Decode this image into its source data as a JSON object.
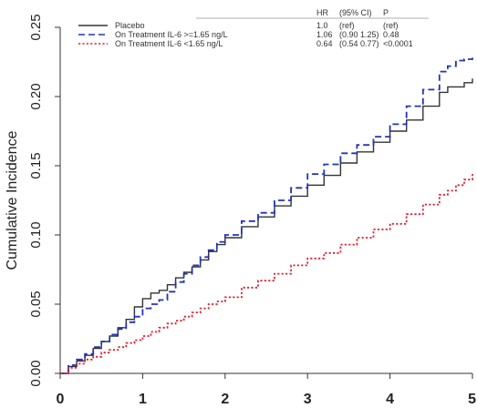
{
  "chart_data": {
    "type": "line",
    "title": "",
    "xlabel": "",
    "ylabel": "Cumulative Incidence",
    "xlim": [
      0,
      5
    ],
    "ylim": [
      0,
      0.25
    ],
    "x_ticks": [
      "0",
      "1",
      "2",
      "3",
      "4",
      "5"
    ],
    "y_ticks": [
      "0.00",
      "0.05",
      "0.10",
      "0.15",
      "0.20",
      "0.25"
    ],
    "grid": false,
    "legend_position": "top",
    "legend_headers": {
      "hr": "HR",
      "ci": "(95% CI)",
      "p": "P"
    },
    "series": [
      {
        "name": "Placebo",
        "style": "solid",
        "color": "#333333",
        "hr": "1.0",
        "ci": "(ref)",
        "p": "(ref)",
        "x": [
          0,
          0.1,
          0.2,
          0.3,
          0.4,
          0.5,
          0.6,
          0.7,
          0.8,
          0.9,
          1.0,
          1.1,
          1.2,
          1.3,
          1.4,
          1.5,
          1.6,
          1.7,
          1.8,
          1.9,
          2.0,
          2.2,
          2.4,
          2.6,
          2.8,
          3.0,
          3.2,
          3.4,
          3.6,
          3.8,
          4.0,
          4.2,
          4.4,
          4.6,
          4.7,
          4.8,
          4.9,
          5.0
        ],
        "y": [
          0,
          0.005,
          0.009,
          0.013,
          0.018,
          0.023,
          0.027,
          0.033,
          0.039,
          0.048,
          0.054,
          0.058,
          0.06,
          0.064,
          0.069,
          0.073,
          0.077,
          0.082,
          0.088,
          0.093,
          0.098,
          0.106,
          0.113,
          0.121,
          0.128,
          0.136,
          0.143,
          0.152,
          0.16,
          0.167,
          0.175,
          0.183,
          0.193,
          0.203,
          0.207,
          0.207,
          0.21,
          0.213
        ]
      },
      {
        "name": "On Treatment IL-6  >=1.65 ng/L",
        "style": "dashed",
        "color": "#2233bb",
        "hr": "1.06",
        "ci": "(0.90 1.25)",
        "p": "0.48",
        "x": [
          0,
          0.1,
          0.2,
          0.3,
          0.4,
          0.5,
          0.6,
          0.7,
          0.8,
          0.9,
          1.0,
          1.1,
          1.2,
          1.3,
          1.4,
          1.5,
          1.6,
          1.7,
          1.8,
          1.9,
          2.0,
          2.2,
          2.4,
          2.6,
          2.8,
          3.0,
          3.2,
          3.4,
          3.6,
          3.8,
          4.0,
          4.2,
          4.4,
          4.6,
          4.7,
          4.8,
          4.9,
          5.0
        ],
        "y": [
          0,
          0.006,
          0.01,
          0.014,
          0.019,
          0.023,
          0.028,
          0.032,
          0.037,
          0.041,
          0.047,
          0.05,
          0.053,
          0.059,
          0.066,
          0.072,
          0.078,
          0.084,
          0.089,
          0.095,
          0.1,
          0.11,
          0.116,
          0.125,
          0.134,
          0.144,
          0.151,
          0.159,
          0.165,
          0.171,
          0.18,
          0.193,
          0.205,
          0.218,
          0.222,
          0.226,
          0.227,
          0.228
        ]
      },
      {
        "name": "On Treatment IL-6  <1.65 ng/L",
        "style": "dotted",
        "color": "#dd2233",
        "hr": "0.64",
        "ci": "(0.54 0.77)",
        "p": "<0.0001",
        "x": [
          0,
          0.1,
          0.2,
          0.3,
          0.4,
          0.5,
          0.6,
          0.7,
          0.8,
          0.9,
          1.0,
          1.1,
          1.2,
          1.3,
          1.4,
          1.5,
          1.6,
          1.7,
          1.8,
          1.9,
          2.0,
          2.2,
          2.4,
          2.6,
          2.8,
          3.0,
          3.2,
          3.4,
          3.6,
          3.8,
          4.0,
          4.2,
          4.4,
          4.6,
          4.7,
          4.8,
          4.9,
          5.0
        ],
        "y": [
          0,
          0.004,
          0.007,
          0.01,
          0.012,
          0.015,
          0.017,
          0.019,
          0.022,
          0.024,
          0.027,
          0.03,
          0.033,
          0.036,
          0.038,
          0.041,
          0.044,
          0.047,
          0.05,
          0.052,
          0.055,
          0.062,
          0.067,
          0.072,
          0.078,
          0.083,
          0.087,
          0.093,
          0.098,
          0.104,
          0.108,
          0.115,
          0.122,
          0.129,
          0.132,
          0.136,
          0.14,
          0.144
        ]
      }
    ]
  }
}
